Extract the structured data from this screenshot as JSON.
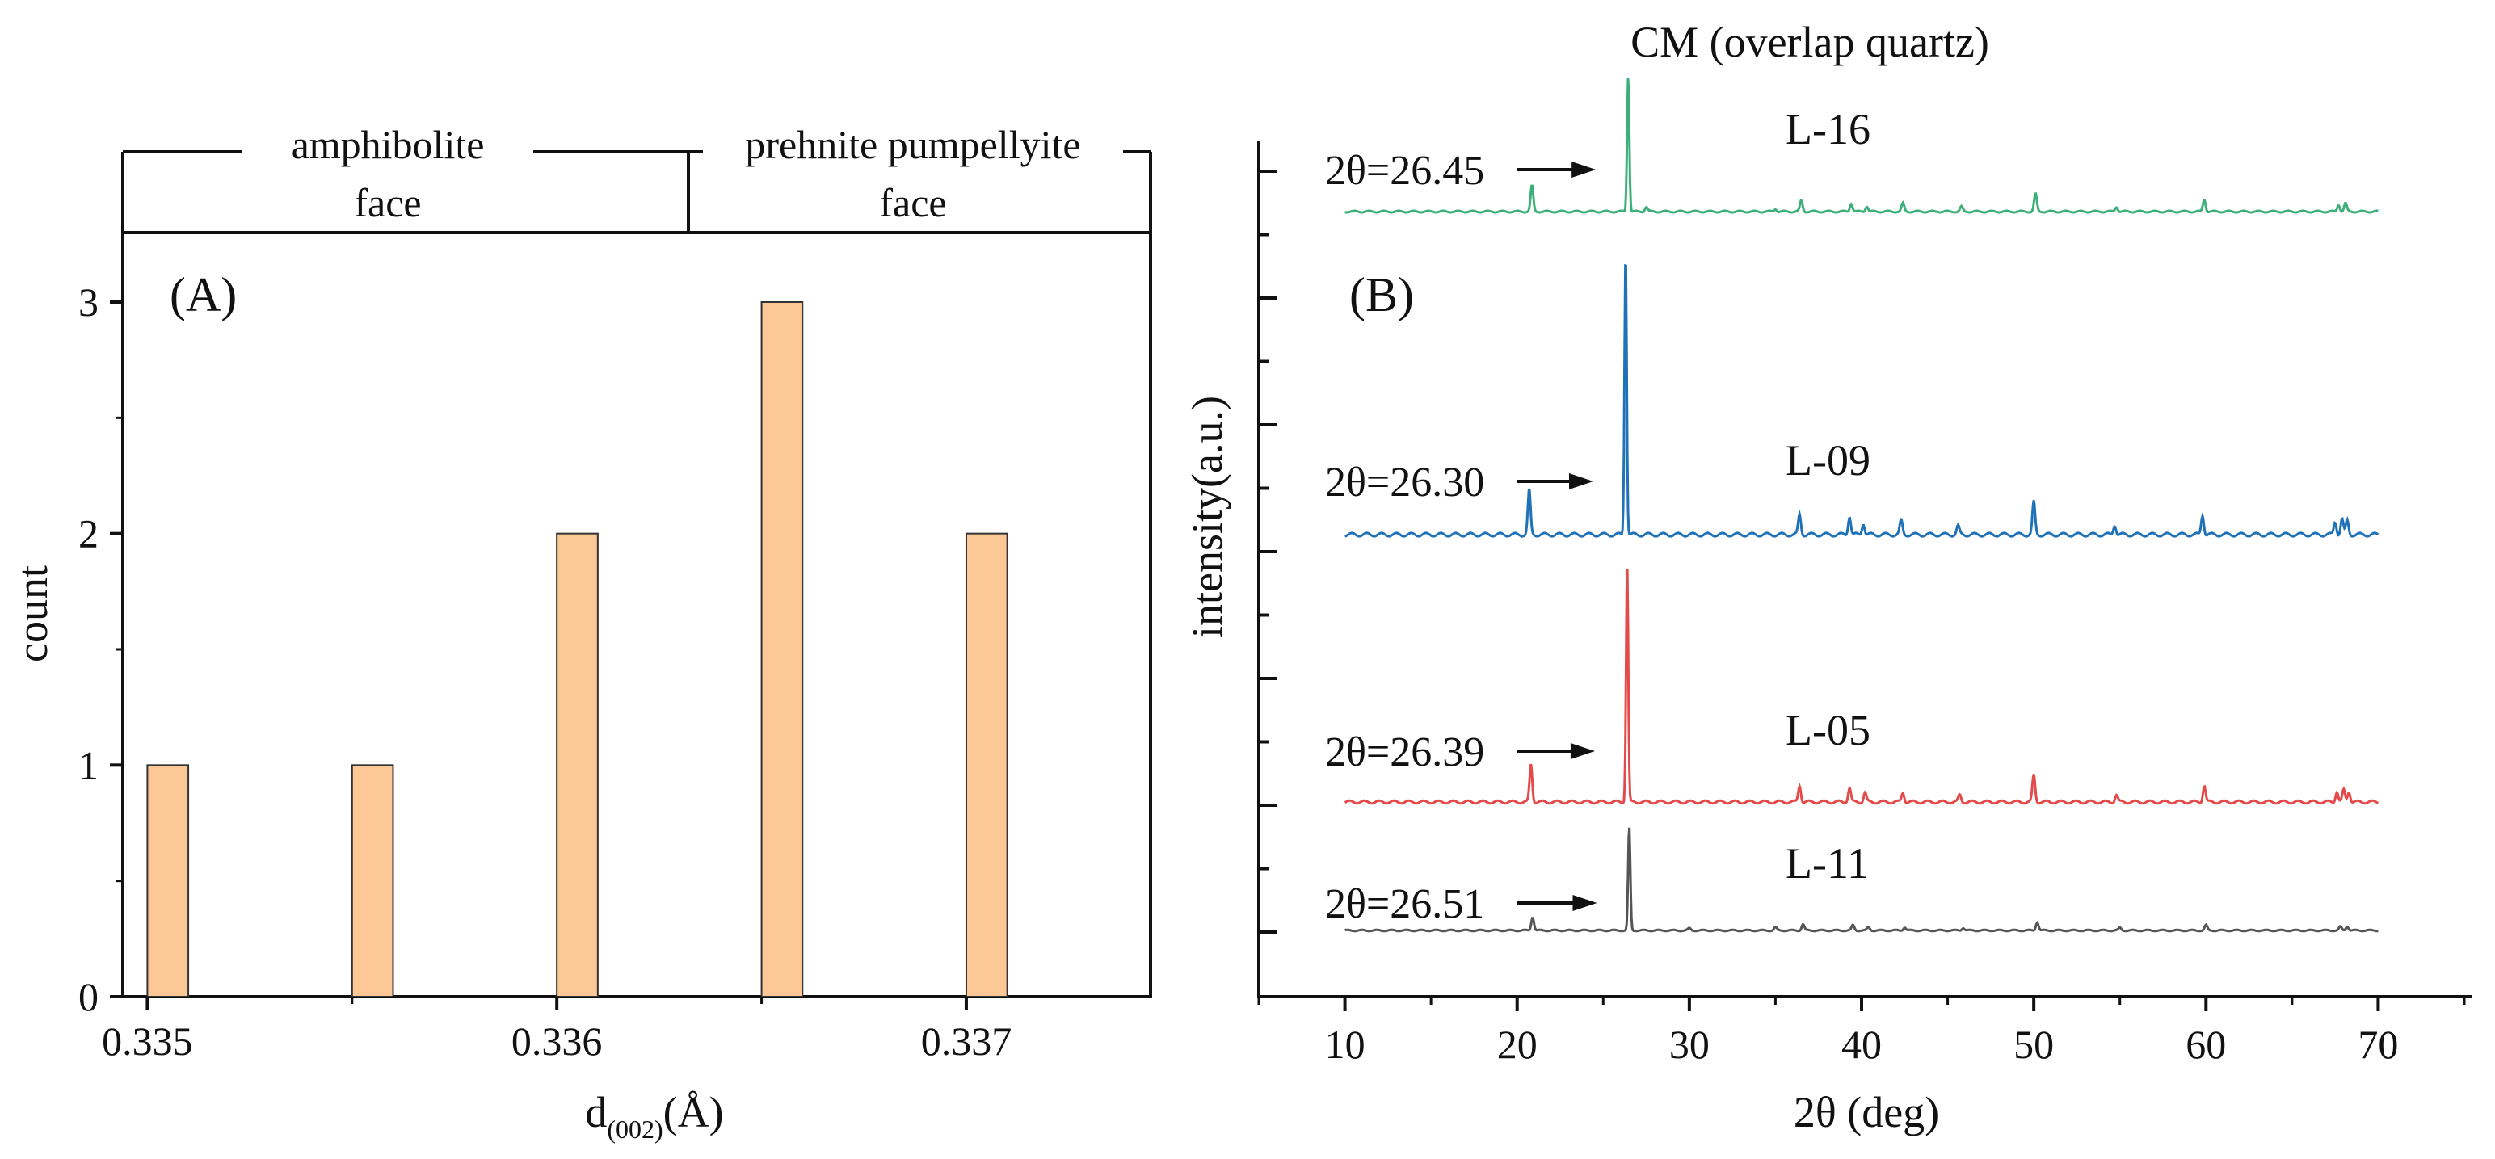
{
  "chart_data": [
    {
      "panel": "(A)",
      "type": "bar",
      "xlabel_main": "d",
      "xlabel_sub": "(002)",
      "xlabel_unit": "(Å)",
      "ylabel": "count",
      "xlim": [
        0.33494,
        0.33745
      ],
      "ylim": [
        0,
        3.3
      ],
      "xticks": [
        0.335,
        0.336,
        0.337
      ],
      "xtick_labels": [
        "0.335",
        "0.336",
        "0.337"
      ],
      "yticks": [
        0,
        1,
        2,
        3
      ],
      "ytick_labels": [
        "0",
        "1",
        "2",
        "3"
      ],
      "bar_width": 0.0001,
      "bar_color": "#FCC896",
      "bars": [
        {
          "d": 0.33505,
          "count": 1
        },
        {
          "d": 0.33555,
          "count": 1
        },
        {
          "d": 0.33605,
          "count": 2
        },
        {
          "d": 0.33655,
          "count": 3
        },
        {
          "d": 0.33705,
          "count": 2
        }
      ],
      "facies": [
        {
          "name_line1": "amphibolite",
          "name_line2": "face",
          "range": [
            0.33494,
            0.33631
          ]
        },
        {
          "name_line1": "prehnite pumpellyite",
          "name_line2": "face",
          "range": [
            0.33631,
            0.33745
          ]
        }
      ]
    },
    {
      "panel": "(B)",
      "type": "line",
      "title": "CM (overlap quartz)",
      "xlabel": "2θ (deg)",
      "ylabel": "intensity(a.u.)",
      "xlim": [
        5,
        75
      ],
      "xticks": [
        10,
        20,
        30,
        40,
        50,
        60,
        70
      ],
      "xtick_labels": [
        "10",
        "20",
        "30",
        "40",
        "50",
        "60",
        "70"
      ],
      "x_range": [
        10,
        70
      ],
      "peak_positions": [
        20.9,
        26.6,
        36.5,
        39.5,
        40.3,
        42.5,
        45.8,
        50.1,
        54.9,
        60.0,
        67.7,
        68.1,
        68.3
      ],
      "series": [
        {
          "name": "L-16",
          "color": "#3DB07A",
          "peak_label": "2θ=26.45",
          "main_peak": 26.45,
          "peaks": [
            [
              20.86,
              0.19
            ],
            [
              26.45,
              1.0
            ],
            [
              27.5,
              0.035
            ],
            [
              35.0,
              0.02
            ],
            [
              36.5,
              0.08
            ],
            [
              39.4,
              0.06
            ],
            [
              40.3,
              0.04
            ],
            [
              42.4,
              0.06
            ],
            [
              45.8,
              0.035
            ],
            [
              50.1,
              0.13
            ],
            [
              54.8,
              0.035
            ],
            [
              59.9,
              0.09
            ],
            [
              67.7,
              0.05
            ],
            [
              68.1,
              0.06
            ]
          ]
        },
        {
          "name": "L-09",
          "color": "#1F72B8",
          "peak_label": "2θ=26.30",
          "main_peak": 26.3,
          "peaks": [
            [
              20.7,
              0.155
            ],
            [
              26.3,
              1.0
            ],
            [
              36.4,
              0.07
            ],
            [
              39.3,
              0.065
            ],
            [
              40.1,
              0.04
            ],
            [
              42.3,
              0.05
            ],
            [
              45.6,
              0.03
            ],
            [
              50.0,
              0.115
            ],
            [
              54.7,
              0.035
            ],
            [
              59.8,
              0.07
            ],
            [
              67.5,
              0.045
            ],
            [
              67.9,
              0.055
            ],
            [
              68.2,
              0.05
            ]
          ]
        },
        {
          "name": "L-05",
          "color": "#E44A4A",
          "peak_label": "2θ=26.39",
          "main_peak": 26.39,
          "peaks": [
            [
              20.8,
              0.16
            ],
            [
              26.39,
              1.0
            ],
            [
              36.4,
              0.07
            ],
            [
              39.3,
              0.06
            ],
            [
              40.2,
              0.04
            ],
            [
              42.4,
              0.04
            ],
            [
              45.7,
              0.03
            ],
            [
              50.0,
              0.115
            ],
            [
              54.8,
              0.03
            ],
            [
              59.9,
              0.07
            ],
            [
              67.6,
              0.045
            ],
            [
              68.0,
              0.05
            ],
            [
              68.3,
              0.045
            ]
          ]
        },
        {
          "name": "L-11",
          "color": "#555555",
          "peak_label": "2θ=26.51",
          "main_peak": 26.51,
          "peaks": [
            [
              20.9,
              0.13
            ],
            [
              26.51,
              1.0
            ],
            [
              30.0,
              0.02
            ],
            [
              35.0,
              0.03
            ],
            [
              36.6,
              0.06
            ],
            [
              39.5,
              0.05
            ],
            [
              40.4,
              0.03
            ],
            [
              42.5,
              0.03
            ],
            [
              45.9,
              0.025
            ],
            [
              50.2,
              0.08
            ],
            [
              55.0,
              0.025
            ],
            [
              60.0,
              0.05
            ],
            [
              67.8,
              0.035
            ],
            [
              68.2,
              0.04
            ]
          ]
        }
      ]
    }
  ]
}
